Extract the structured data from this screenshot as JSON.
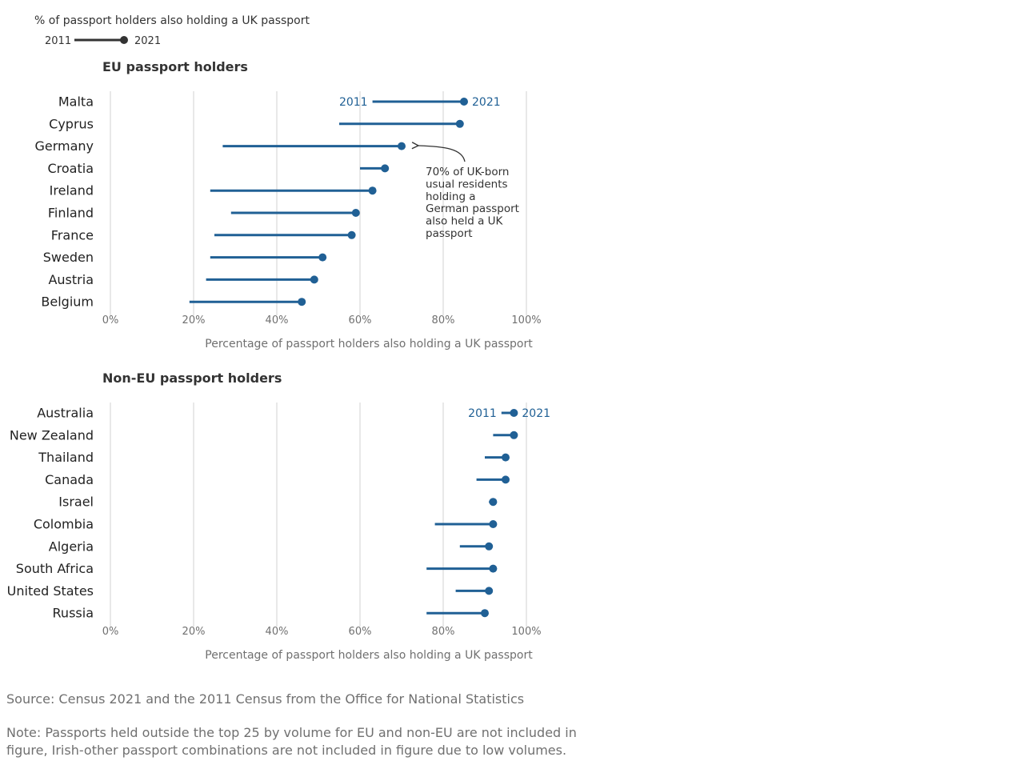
{
  "legend": {
    "title": "% of passport holders also holding a UK passport",
    "start_label": "2011",
    "end_label": "2021"
  },
  "colors": {
    "series": "#206095",
    "legend": "#333333",
    "grid": "#d0d0d0",
    "axis_text": "#707070"
  },
  "chart_data": [
    {
      "type": "dumbbell",
      "title": "EU passport holders",
      "xlabel": "Percentage of passport holders also holding a UK passport",
      "xlim": [
        0,
        100
      ],
      "ticks": [
        "0%",
        "20%",
        "40%",
        "60%",
        "80%",
        "100%"
      ],
      "tick_values": [
        0,
        20,
        40,
        60,
        80,
        100
      ],
      "grid": true,
      "series": [
        {
          "name": "2011",
          "values": [
            63,
            55,
            27,
            60,
            24,
            29,
            25,
            24,
            23,
            19
          ]
        },
        {
          "name": "2021",
          "values": [
            85,
            84,
            70,
            66,
            63,
            59,
            58,
            51,
            49,
            46
          ]
        }
      ],
      "categories": [
        "Malta",
        "Cyprus",
        "Germany",
        "Croatia",
        "Ireland",
        "Finland",
        "France",
        "Sweden",
        "Austria",
        "Belgium"
      ],
      "year_labels": {
        "start": "2011",
        "end": "2021"
      },
      "annotation": {
        "category": "Germany",
        "lines": [
          "70% of UK-born",
          "usual residents",
          "holding a",
          "German passport",
          "also held a UK",
          "passport"
        ]
      }
    },
    {
      "type": "dumbbell",
      "title": "Non-EU passport holders",
      "xlabel": "Percentage of passport holders also holding a UK passport",
      "xlim": [
        0,
        100
      ],
      "ticks": [
        "0%",
        "20%",
        "40%",
        "60%",
        "80%",
        "100%"
      ],
      "tick_values": [
        0,
        20,
        40,
        60,
        80,
        100
      ],
      "grid": true,
      "series": [
        {
          "name": "2011",
          "values": [
            94,
            92,
            90,
            88,
            91,
            78,
            84,
            76,
            83,
            76
          ]
        },
        {
          "name": "2021",
          "values": [
            97,
            97,
            95,
            95,
            92,
            92,
            91,
            92,
            91,
            90
          ]
        }
      ],
      "categories": [
        "Australia",
        "New Zealand",
        "Thailand",
        "Canada",
        "Israel",
        "Colombia",
        "Algeria",
        "South Africa",
        "United States",
        "Russia"
      ],
      "year_labels": {
        "start": "2011",
        "end": "2021"
      }
    }
  ],
  "footer": {
    "source": "Source: Census 2021 and the 2011 Census from the Office for National Statistics",
    "note_lines": [
      "Note: Passports held outside the top 25 by volume for EU and non-EU are not included in",
      "figure, Irish-other passport combinations are not included in figure due to low volumes."
    ]
  }
}
